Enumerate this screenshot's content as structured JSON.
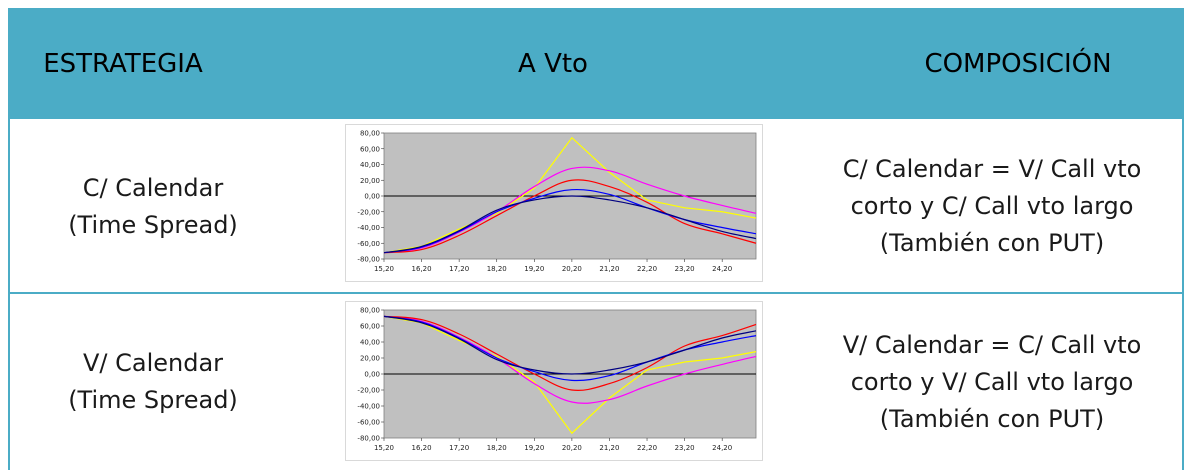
{
  "header": {
    "col1": "ESTRATEGIA",
    "col2": "A Vto",
    "col3": "COMPOSICIÓN",
    "color": "#4bacc6"
  },
  "rows": [
    {
      "strategy_line1": "C/ Calendar",
      "strategy_line2": "(Time Spread)",
      "comp_line1": "C/ Calendar = V/ Call vto",
      "comp_line2": "corto y C/ Call vto largo",
      "comp_line3": "(También con PUT)"
    },
    {
      "strategy_line1": "V/ Calendar",
      "strategy_line2": "(Time Spread)",
      "comp_line1": "V/ Calendar = C/ Call vto",
      "comp_line2": "corto y V/ Call vto largo",
      "comp_line3": "(También con PUT)"
    }
  ],
  "chart_data": [
    {
      "type": "line",
      "x_ticks": [
        "15,20",
        "16,20",
        "17,20",
        "18,20",
        "19,20",
        "20,20",
        "21,20",
        "22,20",
        "23,20",
        "24,20"
      ],
      "y_ticks": [
        "80,00",
        "60,00",
        "40,00",
        "20,00",
        "0,00",
        "-20,00",
        "-40,00",
        "-60,00",
        "-80,00"
      ],
      "ylim": [
        -80,
        80
      ],
      "xlim": [
        15.2,
        25.1
      ],
      "background": "#c0c0c0",
      "series": [
        {
          "color": "#ffff00",
          "x": [
            15.2,
            16.2,
            17.2,
            18.2,
            19.2,
            20.2,
            21.2,
            22.2,
            23.2,
            24.2,
            25.1
          ],
          "y": [
            -72,
            -64,
            -42,
            -22,
            10,
            74,
            30,
            -5,
            -15,
            -20,
            -28
          ]
        },
        {
          "color": "#ff00ff",
          "x": [
            15.2,
            16.2,
            17.2,
            18.2,
            19.2,
            20.2,
            21.2,
            22.2,
            23.2,
            24.2,
            25.1
          ],
          "y": [
            -72,
            -66,
            -46,
            -20,
            12,
            35,
            32,
            15,
            0,
            -12,
            -22
          ]
        },
        {
          "color": "#ff0000",
          "x": [
            15.2,
            16.2,
            17.2,
            18.2,
            19.2,
            20.2,
            21.2,
            22.2,
            23.2,
            24.2,
            25.1
          ],
          "y": [
            -72,
            -68,
            -50,
            -25,
            0,
            20,
            12,
            -8,
            -35,
            -48,
            -60
          ]
        },
        {
          "color": "#0000ff",
          "x": [
            15.2,
            16.2,
            17.2,
            18.2,
            19.2,
            20.2,
            21.2,
            22.2,
            23.2,
            24.2,
            25.1
          ],
          "y": [
            -72,
            -65,
            -45,
            -20,
            -3,
            8,
            2,
            -15,
            -30,
            -40,
            -48
          ]
        },
        {
          "color": "#000080",
          "x": [
            15.2,
            16.2,
            17.2,
            18.2,
            19.2,
            20.2,
            21.2,
            22.2,
            23.2,
            24.2,
            25.1
          ],
          "y": [
            -72,
            -64,
            -44,
            -18,
            -5,
            0,
            -5,
            -15,
            -30,
            -45,
            -54
          ]
        }
      ]
    },
    {
      "type": "line",
      "x_ticks": [
        "15,20",
        "16,20",
        "17,20",
        "18,20",
        "19,20",
        "20,20",
        "21,20",
        "22,20",
        "23,20",
        "24,20"
      ],
      "y_ticks": [
        "80,00",
        "60,00",
        "40,00",
        "20,00",
        "0,00",
        "-20,00",
        "-40,00",
        "-60,00",
        "-80,00"
      ],
      "ylim": [
        -80,
        80
      ],
      "xlim": [
        15.2,
        25.1
      ],
      "background": "#c0c0c0",
      "series": [
        {
          "color": "#ffff00",
          "x": [
            15.2,
            16.2,
            17.2,
            18.2,
            19.2,
            20.2,
            21.2,
            22.2,
            23.2,
            24.2,
            25.1
          ],
          "y": [
            72,
            64,
            42,
            22,
            -10,
            -74,
            -30,
            5,
            15,
            20,
            28
          ]
        },
        {
          "color": "#ff00ff",
          "x": [
            15.2,
            16.2,
            17.2,
            18.2,
            19.2,
            20.2,
            21.2,
            22.2,
            23.2,
            24.2,
            25.1
          ],
          "y": [
            72,
            66,
            46,
            20,
            -12,
            -35,
            -32,
            -15,
            0,
            12,
            22
          ]
        },
        {
          "color": "#ff0000",
          "x": [
            15.2,
            16.2,
            17.2,
            18.2,
            19.2,
            20.2,
            21.2,
            22.2,
            23.2,
            24.2,
            25.1
          ],
          "y": [
            72,
            68,
            50,
            25,
            0,
            -20,
            -12,
            8,
            35,
            48,
            62
          ]
        },
        {
          "color": "#0000ff",
          "x": [
            15.2,
            16.2,
            17.2,
            18.2,
            19.2,
            20.2,
            21.2,
            22.2,
            23.2,
            24.2,
            25.1
          ],
          "y": [
            72,
            65,
            45,
            20,
            3,
            -8,
            -2,
            15,
            30,
            40,
            48
          ]
        },
        {
          "color": "#000080",
          "x": [
            15.2,
            16.2,
            17.2,
            18.2,
            19.2,
            20.2,
            21.2,
            22.2,
            23.2,
            24.2,
            25.1
          ],
          "y": [
            72,
            64,
            44,
            18,
            5,
            0,
            5,
            15,
            30,
            45,
            54
          ]
        }
      ]
    }
  ]
}
